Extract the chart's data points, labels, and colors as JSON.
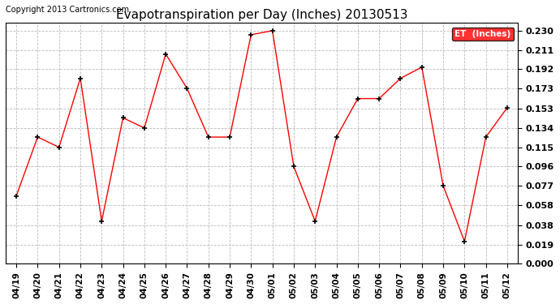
{
  "title": "Evapotranspiration per Day (Inches) 20130513",
  "copyright": "Copyright 2013 Cartronics.com",
  "legend_label": "ET  (Inches)",
  "legend_bg": "#ff0000",
  "legend_text_color": "#ffffff",
  "dates": [
    "04/19",
    "04/20",
    "04/21",
    "04/22",
    "04/23",
    "04/24",
    "04/25",
    "04/26",
    "04/27",
    "04/28",
    "04/29",
    "04/30",
    "05/01",
    "05/02",
    "05/03",
    "05/04",
    "05/05",
    "05/06",
    "05/07",
    "05/08",
    "05/09",
    "05/10",
    "05/11",
    "05/12"
  ],
  "values": [
    0.067,
    0.125,
    0.115,
    0.183,
    0.042,
    0.144,
    0.134,
    0.207,
    0.173,
    0.125,
    0.125,
    0.226,
    0.23,
    0.096,
    0.042,
    0.125,
    0.163,
    0.163,
    0.183,
    0.194,
    0.077,
    0.022,
    0.125,
    0.154
  ],
  "ylim_min": 0.0,
  "ylim_max": 0.2375,
  "yticks": [
    0.0,
    0.019,
    0.038,
    0.058,
    0.077,
    0.096,
    0.115,
    0.134,
    0.153,
    0.173,
    0.192,
    0.211,
    0.23
  ],
  "line_color": "#ff0000",
  "marker": "+",
  "marker_size": 5,
  "marker_color": "#000000",
  "grid_color": "#bbbbbb",
  "grid_style": "--",
  "bg_color": "#ffffff",
  "title_fontsize": 11,
  "tick_fontsize": 7.5,
  "copyright_fontsize": 7,
  "ytick_fontsize": 8
}
